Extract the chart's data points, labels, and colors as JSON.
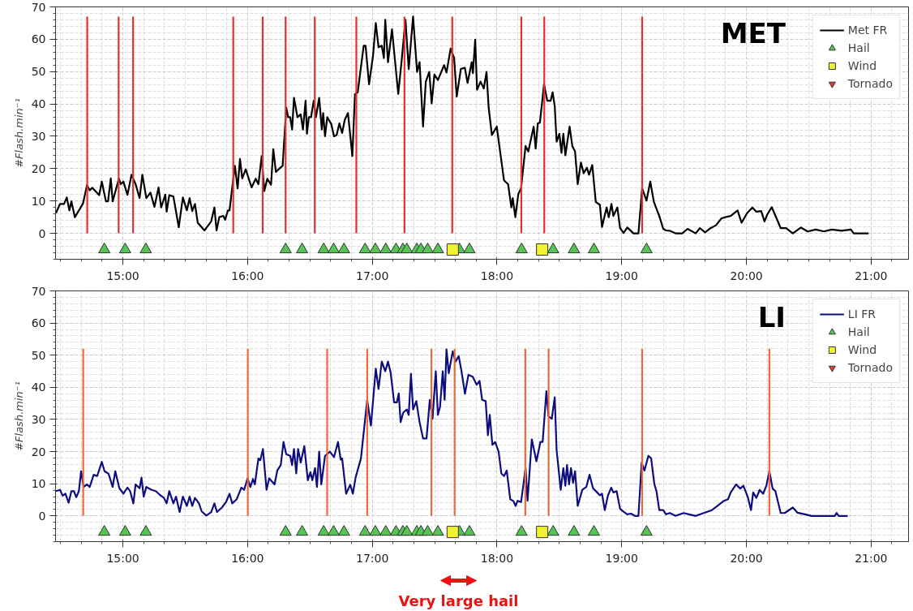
{
  "chart_data": [
    {
      "type": "line",
      "title": "MET",
      "ylabel": "#Flash.min⁻¹",
      "xlim": [
        14.46,
        21.3
      ],
      "ylim": [
        -8,
        70
      ],
      "xticks": [
        {
          "value": 15,
          "label": "15:00"
        },
        {
          "value": 16,
          "label": "16:00"
        },
        {
          "value": 17,
          "label": "17:00"
        },
        {
          "value": 18,
          "label": "18:00"
        },
        {
          "value": 19,
          "label": "19:00"
        },
        {
          "value": 20,
          "label": "20:00"
        },
        {
          "value": 21,
          "label": "21:00"
        }
      ],
      "yticks": [
        0,
        10,
        20,
        30,
        40,
        50,
        60,
        70
      ],
      "grid": true,
      "legend": "top right",
      "series": [
        {
          "name": "Met FR",
          "color": "#000000",
          "x": [
            14.463,
            14.496,
            14.528,
            14.55,
            14.571,
            14.587,
            14.615,
            14.68,
            14.712,
            14.734,
            14.755,
            14.81,
            14.831,
            14.864,
            14.881,
            14.903,
            14.918,
            14.968,
            14.983,
            15.004,
            15.037,
            15.069,
            15.102,
            15.134,
            15.156,
            15.188,
            15.221,
            15.253,
            15.286,
            15.307,
            15.34,
            15.351,
            15.372,
            15.405,
            15.448,
            15.481,
            15.513,
            15.535,
            15.556,
            15.578,
            15.6,
            15.654,
            15.708,
            15.734,
            15.751,
            15.773,
            15.805,
            15.82,
            15.842,
            15.855,
            15.898,
            15.92,
            15.939,
            15.957,
            15.985,
            16.032,
            16.065,
            16.087,
            16.113,
            16.134,
            16.158,
            16.188,
            16.206,
            16.227,
            16.249,
            16.281,
            16.31,
            16.325,
            16.342,
            16.357,
            16.372,
            16.4,
            16.426,
            16.444,
            16.465,
            16.476,
            16.491,
            16.509,
            16.53,
            16.548,
            16.574,
            16.595,
            16.606,
            16.621,
            16.639,
            16.671,
            16.693,
            16.714,
            16.736,
            16.758,
            16.779,
            16.805,
            16.84,
            16.861,
            16.883,
            16.931,
            16.946,
            16.974,
            17.006,
            17.028,
            17.05,
            17.076,
            17.093,
            17.104,
            17.126,
            17.158,
            17.18,
            17.208,
            17.234,
            17.266,
            17.292,
            17.327,
            17.359,
            17.379,
            17.407,
            17.429,
            17.457,
            17.476,
            17.498,
            17.526,
            17.576,
            17.595,
            17.628,
            17.656,
            17.677,
            17.71,
            17.742,
            17.764,
            17.797,
            17.807,
            17.825,
            17.84,
            17.868,
            17.894,
            17.916,
            17.933,
            17.959,
            17.998,
            18.056,
            18.089,
            18.115,
            18.126,
            18.147,
            18.171,
            18.193,
            18.229,
            18.251,
            18.294,
            18.31,
            18.327,
            18.344,
            18.377,
            18.403,
            18.43,
            18.446,
            18.463,
            18.478,
            18.5,
            18.517,
            18.532,
            18.548,
            18.582,
            18.604,
            18.626,
            18.647,
            18.673,
            18.695,
            18.721,
            18.738,
            18.764,
            18.792,
            18.825,
            18.842,
            18.879,
            18.896,
            18.918,
            18.933,
            18.965,
            18.987,
            19.015,
            19.045,
            19.095,
            19.134,
            19.164,
            19.199,
            19.229,
            19.258,
            19.301,
            19.333,
            19.355,
            19.387,
            19.431,
            19.485,
            19.528,
            19.593,
            19.626,
            19.669,
            19.712,
            19.756,
            19.799,
            19.831,
            19.874,
            19.929,
            19.961,
            20.006,
            20.048,
            20.08,
            20.119,
            20.145,
            20.167,
            20.203,
            20.242,
            20.275,
            20.318,
            20.372,
            20.437,
            20.491,
            20.556,
            20.621,
            20.686,
            20.762,
            20.838,
            20.86,
            20.979
          ],
          "values": [
            6.3,
            9.1,
            9.1,
            11.1,
            7.1,
            9.9,
            5.0,
            9.2,
            14.9,
            13.3,
            14.1,
            11.8,
            16.0,
            9.9,
            9.9,
            17.0,
            9.9,
            16.9,
            15.2,
            16.0,
            11.9,
            18.1,
            15.2,
            10.9,
            18.1,
            10.9,
            12.6,
            8.2,
            14.2,
            8.0,
            12.0,
            6.7,
            11.8,
            11.4,
            1.9,
            11.1,
            7.1,
            10.9,
            6.9,
            9.1,
            3.3,
            0.9,
            3.7,
            8.0,
            0.9,
            5.0,
            5.4,
            4.2,
            7.1,
            7.1,
            20.9,
            13.9,
            23.0,
            17.0,
            19.8,
            14.2,
            16.9,
            15.2,
            23.9,
            13.1,
            16.9,
            15.0,
            26.0,
            19.0,
            19.8,
            20.9,
            38.9,
            35.9,
            35.9,
            32.1,
            41.9,
            35.9,
            36.8,
            32.1,
            41.0,
            30.8,
            35.9,
            35.9,
            41.0,
            35.9,
            41.9,
            32.1,
            37.2,
            30.0,
            35.9,
            33.8,
            30.0,
            30.4,
            34.0,
            31.0,
            35.1,
            37.2,
            23.9,
            43.0,
            43.6,
            58.0,
            58.0,
            46.1,
            55.0,
            65.0,
            57.5,
            58.0,
            54.2,
            66.0,
            52.9,
            63.1,
            54.2,
            43.1,
            52.9,
            66.0,
            50.8,
            67.0,
            49.9,
            52.9,
            33.0,
            46.9,
            49.9,
            40.2,
            49.1,
            47.4,
            52.0,
            49.7,
            57.1,
            54.2,
            42.3,
            50.8,
            51.2,
            46.5,
            52.9,
            49.5,
            59.9,
            44.4,
            46.9,
            44.8,
            49.9,
            38.9,
            30.4,
            33.0,
            16.4,
            15.2,
            8.0,
            10.9,
            5.0,
            12.2,
            13.9,
            27.0,
            25.3,
            33.0,
            26.2,
            34.0,
            34.2,
            46.1,
            41.0,
            41.0,
            43.6,
            39.3,
            28.3,
            30.8,
            24.9,
            30.8,
            24.1,
            33.0,
            27.0,
            25.3,
            15.2,
            21.9,
            18.6,
            20.3,
            18.1,
            21.1,
            9.7,
            8.8,
            2.0,
            8.0,
            5.0,
            9.1,
            5.4,
            8.0,
            1.6,
            0.1,
            1.8,
            0,
            0,
            13.9,
            10.1,
            16.0,
            9.7,
            5.4,
            1.4,
            0.9,
            0.8,
            0,
            0,
            1.4,
            0,
            1.6,
            0.3,
            1.6,
            2.5,
            4.6,
            5.0,
            5.4,
            7.1,
            3.3,
            6.3,
            8.0,
            6.7,
            6.9,
            3.7,
            5.8,
            8.1,
            4.6,
            1.6,
            1.6,
            0,
            1.8,
            0.6,
            1.2,
            0.6,
            1.2,
            0.8,
            1.2,
            0,
            0
          ]
        },
        {
          "color": "#e03131",
          "x": [
            14.714,
            14.714,
            null,
            14.966,
            14.966,
            null,
            15.082,
            15.082,
            null,
            15.885,
            15.885,
            null,
            16.121,
            16.121,
            null,
            16.305,
            16.305,
            null,
            16.539,
            16.539,
            null,
            16.872,
            16.872,
            null,
            17.258,
            17.258,
            null,
            17.641,
            17.641,
            null,
            18.195,
            18.195,
            null,
            18.379,
            18.379,
            null,
            19.164,
            19.164
          ],
          "values": [
            0,
            67,
            null,
            0,
            67,
            null,
            0,
            67,
            null,
            0,
            67,
            null,
            0,
            67,
            null,
            0,
            67,
            null,
            0,
            67,
            null,
            0,
            67,
            null,
            0,
            67,
            null,
            0,
            67,
            null,
            0,
            67,
            null,
            0,
            67,
            null,
            0,
            67
          ]
        },
        {
          "name": "Hail",
          "type": "scatter",
          "marker": "triangle",
          "color": "#55c455",
          "x": [
            14.851,
            15.018,
            15.184,
            16.305,
            16.437,
            16.61,
            16.69,
            16.773,
            16.942,
            17.024,
            17.108,
            17.19,
            17.245,
            17.277,
            17.357,
            17.39,
            17.444,
            17.526,
            17.699,
            17.779,
            18.197,
            18.45,
            18.617,
            18.777,
            19.199
          ],
          "values": [
            -5,
            -5,
            -5,
            -5,
            -5,
            -5,
            -5,
            -5,
            -5,
            -5,
            -5,
            -5,
            -5,
            -5,
            -5,
            -5,
            -5,
            -5,
            -5,
            -5,
            -5,
            -5,
            -5,
            -5,
            -5
          ]
        },
        {
          "name": "Wind",
          "type": "scatter",
          "marker": "square",
          "color": "#f2f230",
          "x": [
            17.645,
            18.362
          ],
          "values": [
            -5,
            -5
          ]
        },
        {
          "name": "Tornado",
          "type": "scatter",
          "marker": "inverted_triangle",
          "color": "#e63a2e"
        }
      ]
    },
    {
      "type": "line",
      "title": "LI",
      "ylabel": "#Flash.min⁻¹",
      "xlim": [
        14.46,
        21.3
      ],
      "ylim": [
        -8,
        70
      ],
      "xticks": [
        {
          "value": 15,
          "label": "15:00"
        },
        {
          "value": 16,
          "label": "16:00"
        },
        {
          "value": 17,
          "label": "17:00"
        },
        {
          "value": 18,
          "label": "18:00"
        },
        {
          "value": 19,
          "label": "19:00"
        },
        {
          "value": 20,
          "label": "20:00"
        },
        {
          "value": 21,
          "label": "21:00"
        }
      ],
      "yticks": [
        0,
        10,
        20,
        30,
        40,
        50,
        60,
        70
      ],
      "grid": true,
      "legend": "top right",
      "annotations": [
        "Very large hail"
      ],
      "series": [
        {
          "name": "LI FR",
          "color": "#0d0d80",
          "x": [
            14.463,
            14.496,
            14.517,
            14.539,
            14.565,
            14.587,
            14.608,
            14.626,
            14.647,
            14.665,
            14.686,
            14.712,
            14.734,
            14.766,
            14.794,
            14.831,
            14.853,
            14.885,
            14.918,
            14.939,
            14.972,
            15.004,
            15.037,
            15.058,
            15.084,
            15.102,
            15.134,
            15.149,
            15.167,
            15.188,
            15.232,
            15.264,
            15.301,
            15.329,
            15.351,
            15.372,
            15.405,
            15.426,
            15.455,
            15.481,
            15.513,
            15.535,
            15.556,
            15.578,
            15.61,
            15.632,
            15.669,
            15.708,
            15.734,
            15.755,
            15.794,
            15.827,
            15.855,
            15.877,
            15.913,
            15.95,
            15.972,
            16.0,
            16.022,
            16.043,
            16.058,
            16.087,
            16.102,
            16.123,
            16.152,
            16.173,
            16.216,
            16.238,
            16.266,
            16.288,
            16.31,
            16.342,
            16.357,
            16.372,
            16.39,
            16.405,
            16.426,
            16.455,
            16.483,
            16.504,
            16.519,
            16.541,
            16.556,
            16.574,
            16.591,
            16.621,
            16.66,
            16.693,
            16.725,
            16.747,
            16.758,
            16.79,
            16.823,
            16.844,
            16.866,
            16.909,
            16.959,
            16.989,
            17.028,
            17.05,
            17.076,
            17.104,
            17.126,
            17.147,
            17.175,
            17.197,
            17.212,
            17.227,
            17.249,
            17.277,
            17.292,
            17.31,
            17.327,
            17.353,
            17.379,
            17.407,
            17.435,
            17.461,
            17.483,
            17.509,
            17.526,
            17.543,
            17.565,
            17.58,
            17.595,
            17.613,
            17.645,
            17.667,
            17.693,
            17.717,
            17.743,
            17.771,
            17.805,
            17.837,
            17.86,
            17.881,
            17.909,
            17.927,
            17.942,
            17.963,
            17.985,
            18.013,
            18.035,
            18.056,
            18.078,
            18.106,
            18.132,
            18.149,
            18.165,
            18.193,
            18.229,
            18.245,
            18.279,
            18.316,
            18.348,
            18.366,
            18.396,
            18.413,
            18.439,
            18.463,
            18.478,
            18.511,
            18.532,
            18.548,
            18.561,
            18.578,
            18.593,
            18.61,
            18.626,
            18.647,
            18.684,
            18.716,
            18.742,
            18.77,
            18.803,
            18.825,
            18.842,
            18.864,
            18.89,
            18.916,
            18.933,
            18.959,
            18.987,
            19.019,
            19.045,
            19.074,
            19.106,
            19.134,
            19.16,
            19.182,
            19.214,
            19.236,
            19.262,
            19.279,
            19.301,
            19.333,
            19.355,
            19.387,
            19.431,
            19.496,
            19.539,
            19.593,
            19.658,
            19.723,
            19.766,
            19.82,
            19.853,
            19.874,
            19.918,
            19.95,
            19.976,
            20.01,
            20.037,
            20.054,
            20.08,
            20.106,
            20.134,
            20.16,
            20.184,
            20.21,
            20.232,
            20.275,
            20.307,
            20.372,
            20.409,
            20.47,
            20.524,
            20.708,
            20.723,
            20.74,
            20.812
          ],
          "values": [
            7.7,
            8.1,
            6.3,
            6.9,
            4.1,
            7.7,
            7.7,
            5.8,
            7.7,
            13.9,
            9.0,
            9.8,
            9.0,
            12.8,
            12.4,
            16.8,
            13.9,
            13.1,
            9.0,
            13.9,
            8.6,
            6.9,
            8.8,
            7.7,
            3.9,
            9.8,
            8.6,
            11.9,
            6.0,
            9.0,
            8.1,
            7.7,
            6.4,
            5.6,
            3.9,
            7.7,
            3.9,
            6.0,
            1.2,
            6.0,
            3.1,
            6.0,
            3.1,
            5.6,
            3.9,
            1.4,
            0.1,
            1.2,
            3.9,
            1.2,
            2.6,
            4.3,
            6.9,
            3.9,
            5.2,
            8.8,
            8.1,
            11.7,
            9.0,
            11.5,
            9.8,
            17.9,
            17.3,
            20.8,
            8.1,
            11.7,
            9.8,
            14.1,
            15.8,
            23.0,
            19.2,
            18.7,
            15.8,
            20.8,
            13.2,
            20.8,
            16.6,
            21.7,
            11.1,
            13.6,
            11.1,
            14.9,
            9.0,
            20.0,
            9.8,
            18.7,
            20.0,
            18.3,
            23.0,
            17.5,
            17.9,
            6.9,
            9.7,
            6.9,
            11.9,
            17.9,
            36.1,
            28.1,
            45.8,
            39.5,
            48.0,
            45.0,
            48.0,
            44.6,
            35.3,
            35.3,
            38.1,
            29.2,
            32.2,
            33.1,
            31.4,
            44.2,
            33.1,
            35.7,
            29.2,
            24.1,
            24.1,
            36.1,
            30.2,
            45.0,
            31.4,
            33.9,
            45.0,
            36.1,
            51.8,
            44.4,
            51.2,
            48.0,
            49.7,
            44.6,
            38.0,
            43.9,
            43.3,
            40.8,
            42.0,
            36.1,
            35.7,
            25.1,
            31.4,
            22.1,
            23.0,
            20.0,
            13.2,
            12.4,
            14.1,
            5.2,
            4.6,
            3.1,
            4.7,
            4.3,
            14.9,
            4.7,
            23.8,
            17.0,
            23.0,
            23.0,
            38.8,
            31.0,
            30.2,
            36.9,
            20.4,
            8.1,
            14.9,
            9.4,
            15.8,
            9.8,
            14.9,
            10.3,
            13.9,
            3.1,
            8.1,
            9.0,
            12.8,
            8.6,
            7.3,
            6.4,
            6.9,
            1.8,
            6.4,
            8.8,
            7.3,
            7.7,
            2.2,
            1.2,
            0.5,
            0.7,
            0,
            0,
            16.6,
            14.1,
            18.7,
            17.9,
            9.8,
            7.7,
            1.8,
            1.8,
            0.5,
            0.9,
            0,
            0.9,
            0.5,
            0,
            0.9,
            1.8,
            3.1,
            4.7,
            5.2,
            7.3,
            9.8,
            8.5,
            9.4,
            6.0,
            1.8,
            7.3,
            5.6,
            8.1,
            6.9,
            9.4,
            13.9,
            8.5,
            7.7,
            0.9,
            0.9,
            2.6,
            1.0,
            0.5,
            0,
            0,
            0.9,
            0,
            0
          ]
        },
        {
          "color": "#ee6a3a",
          "x": [
            14.682,
            14.682,
            null,
            16.002,
            16.002,
            null,
            16.638,
            16.638,
            null,
            16.959,
            16.959,
            null,
            17.474,
            17.474,
            null,
            17.66,
            17.66,
            null,
            18.227,
            18.227,
            null,
            18.414,
            18.414,
            null,
            19.164,
            19.164,
            null,
            20.184,
            20.184
          ],
          "values": [
            0,
            52,
            null,
            0,
            52,
            null,
            0,
            52,
            null,
            0,
            52,
            null,
            0,
            52,
            null,
            0,
            52,
            null,
            0,
            52,
            null,
            0,
            52,
            null,
            0,
            52,
            null,
            0,
            52
          ]
        },
        {
          "name": "Hail",
          "type": "scatter",
          "marker": "triangle",
          "color": "#55c455",
          "x": [
            14.851,
            15.018,
            15.184,
            16.305,
            16.437,
            16.61,
            16.69,
            16.773,
            16.942,
            17.024,
            17.108,
            17.19,
            17.245,
            17.277,
            17.357,
            17.39,
            17.444,
            17.526,
            17.699,
            17.779,
            18.197,
            18.45,
            18.617,
            18.777,
            19.199
          ],
          "values": [
            -5,
            -5,
            -5,
            -5,
            -5,
            -5,
            -5,
            -5,
            -5,
            -5,
            -5,
            -5,
            -5,
            -5,
            -5,
            -5,
            -5,
            -5,
            -5,
            -5,
            -5,
            -5,
            -5,
            -5,
            -5
          ]
        },
        {
          "name": "Wind",
          "type": "scatter",
          "marker": "square",
          "color": "#f2f230",
          "x": [
            17.645,
            18.362
          ],
          "values": [
            -5,
            -5
          ]
        },
        {
          "name": "Tornado",
          "type": "scatter",
          "marker": "inverted_triangle",
          "color": "#e63a2e"
        }
      ]
    }
  ]
}
